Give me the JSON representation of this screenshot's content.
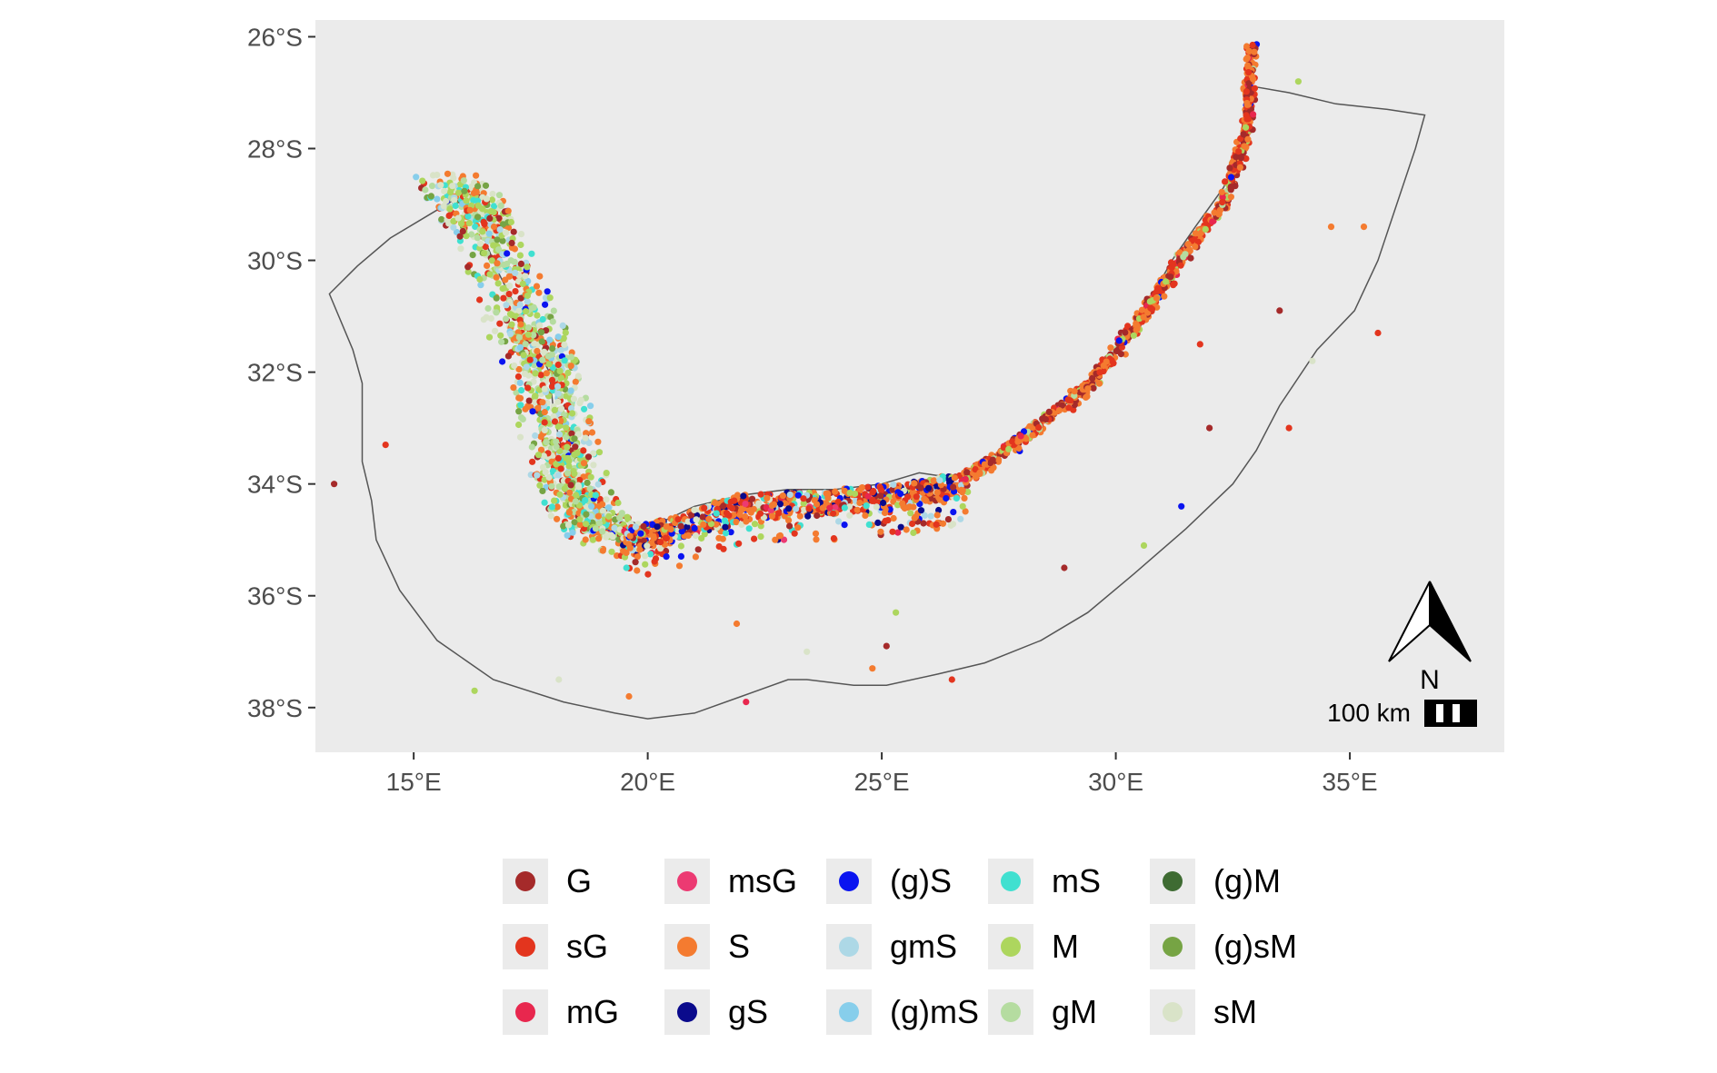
{
  "map": {
    "region": "South African coast",
    "projection": "geographic",
    "lon_range": [
      12.9,
      38.3
    ],
    "lat_range": [
      -38.8,
      -25.7
    ],
    "x_ticks": [
      {
        "value": 15,
        "label": "15°E"
      },
      {
        "value": 20,
        "label": "20°E"
      },
      {
        "value": 25,
        "label": "25°E"
      },
      {
        "value": 30,
        "label": "30°E"
      },
      {
        "value": 35,
        "label": "35°E"
      }
    ],
    "y_ticks": [
      {
        "value": -26,
        "label": "26°S"
      },
      {
        "value": -28,
        "label": "28°S"
      },
      {
        "value": -30,
        "label": "30°S"
      },
      {
        "value": -32,
        "label": "32°S"
      },
      {
        "value": -34,
        "label": "34°S"
      },
      {
        "value": -36,
        "label": "36°S"
      },
      {
        "value": -38,
        "label": "38°S"
      }
    ],
    "panel_background": "#ebebeb",
    "grid": false,
    "boundary_polygon": [
      [
        13.2,
        -30.6
      ],
      [
        13.7,
        -31.6
      ],
      [
        13.9,
        -32.2
      ],
      [
        13.9,
        -33.6
      ],
      [
        14.1,
        -34.3
      ],
      [
        14.2,
        -35.0
      ],
      [
        14.7,
        -35.9
      ],
      [
        15.5,
        -36.8
      ],
      [
        16.7,
        -37.5
      ],
      [
        18.2,
        -37.9
      ],
      [
        19.3,
        -38.1
      ],
      [
        20.0,
        -38.2
      ],
      [
        21.0,
        -38.1
      ],
      [
        22.0,
        -37.8
      ],
      [
        23.0,
        -37.5
      ],
      [
        23.4,
        -37.5
      ],
      [
        24.4,
        -37.6
      ],
      [
        25.1,
        -37.6
      ],
      [
        26.2,
        -37.4
      ],
      [
        27.2,
        -37.2
      ],
      [
        28.4,
        -36.8
      ],
      [
        29.4,
        -36.3
      ],
      [
        30.4,
        -35.6
      ],
      [
        31.5,
        -34.8
      ],
      [
        32.5,
        -34.0
      ],
      [
        33.0,
        -33.4
      ],
      [
        33.5,
        -32.6
      ],
      [
        34.3,
        -31.6
      ],
      [
        35.1,
        -30.9
      ],
      [
        35.6,
        -30.0
      ],
      [
        36.0,
        -29.0
      ],
      [
        36.4,
        -28.0
      ],
      [
        36.6,
        -27.4
      ],
      [
        35.8,
        -27.3
      ],
      [
        34.7,
        -27.2
      ],
      [
        33.7,
        -27.0
      ],
      [
        33.0,
        -26.9
      ],
      [
        32.9,
        -27.3
      ],
      [
        32.7,
        -28.0
      ],
      [
        32.3,
        -28.7
      ],
      [
        31.7,
        -29.4
      ],
      [
        31.2,
        -30.0
      ],
      [
        30.8,
        -30.6
      ],
      [
        30.3,
        -31.3
      ],
      [
        29.6,
        -32.0
      ],
      [
        28.9,
        -32.6
      ],
      [
        28.1,
        -33.1
      ],
      [
        27.3,
        -33.6
      ],
      [
        26.6,
        -33.9
      ],
      [
        25.8,
        -33.8
      ],
      [
        25.0,
        -34.0
      ],
      [
        24.0,
        -34.1
      ],
      [
        23.0,
        -34.1
      ],
      [
        22.0,
        -34.2
      ],
      [
        21.0,
        -34.4
      ],
      [
        20.0,
        -34.8
      ],
      [
        19.2,
        -34.5
      ],
      [
        18.5,
        -34.1
      ],
      [
        18.2,
        -33.5
      ],
      [
        18.0,
        -32.8
      ],
      [
        17.9,
        -32.0
      ],
      [
        17.4,
        -31.2
      ],
      [
        16.8,
        -30.2
      ],
      [
        16.4,
        -29.4
      ],
      [
        15.9,
        -28.9
      ],
      [
        15.3,
        -29.2
      ],
      [
        14.5,
        -29.6
      ],
      [
        13.8,
        -30.1
      ],
      [
        13.2,
        -30.6
      ]
    ]
  },
  "sediment_classes": [
    {
      "code": "G",
      "color": "#a52a2a"
    },
    {
      "code": "sG",
      "color": "#e3351e"
    },
    {
      "code": "mG",
      "color": "#e8274e"
    },
    {
      "code": "msG",
      "color": "#ec3a72"
    },
    {
      "code": "S",
      "color": "#f47b30"
    },
    {
      "code": "gS",
      "color": "#0a0a8c"
    },
    {
      "code": "(g)S",
      "color": "#0a14f0"
    },
    {
      "code": "gmS",
      "color": "#add8e6"
    },
    {
      "code": "(g)mS",
      "color": "#87ceeb"
    },
    {
      "code": "mS",
      "color": "#40e0d0"
    },
    {
      "code": "M",
      "color": "#add65e"
    },
    {
      "code": "gM",
      "color": "#b5dca0"
    },
    {
      "code": "(g)M",
      "color": "#3e6b32"
    },
    {
      "code": "(g)sM",
      "color": "#76a444"
    },
    {
      "code": "sM",
      "color": "#d9e3c8"
    }
  ],
  "legend": {
    "columns": [
      [
        "G",
        "sG",
        "mG"
      ],
      [
        "msG",
        "S",
        "gS"
      ],
      [
        "(g)S",
        "gmS",
        "(g)mS"
      ],
      [
        "mS",
        "M",
        "gM"
      ],
      [
        "(g)M",
        "(g)sM",
        "sM"
      ]
    ]
  },
  "scale_bar": {
    "label": "100 km"
  },
  "north_arrow": {
    "label": "N"
  },
  "icons": {
    "north_arrow": "north-arrow-icon",
    "scale_bar": "scale-bar-icon"
  }
}
